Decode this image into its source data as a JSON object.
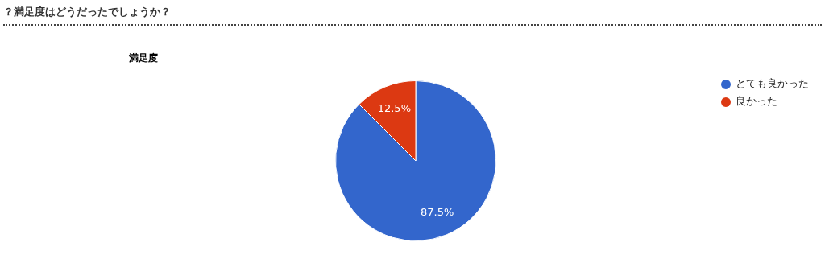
{
  "chart_data": {
    "type": "pie",
    "title": "？満足度はどうだったでしょうか？",
    "subtitle": "満足度",
    "categories": [
      "とても良かった",
      "良かった"
    ],
    "values": [
      87.5,
      12.5
    ],
    "colors": [
      "#3366cc",
      "#dc3912"
    ],
    "value_labels": [
      "87.5%",
      "12.5%"
    ],
    "legend": "top right"
  }
}
